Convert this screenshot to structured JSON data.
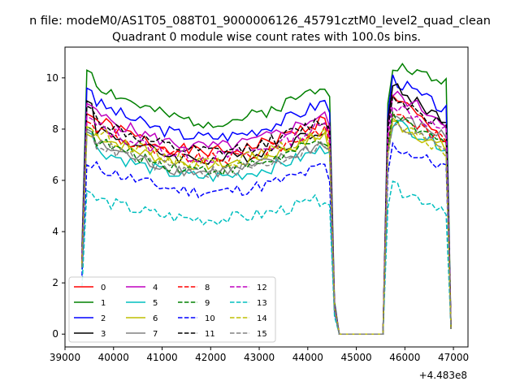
{
  "chart_data": {
    "type": "line",
    "suptitle": "n file: modeM0/AS1T05_088T01_9000006126_45791cztM0_level2_quad_clean",
    "title": "Quadrant 0 module wise count rates with 100.0s bins.",
    "xlabel": "",
    "ylabel": "",
    "x_offset_label": "+4.483e8",
    "xlim": [
      39000,
      47300
    ],
    "ylim": [
      -0.5,
      11.2
    ],
    "xticks": [
      "39000",
      "40000",
      "41000",
      "42000",
      "43000",
      "44000",
      "45000",
      "46000",
      "47000"
    ],
    "yticks": [
      "0",
      "2",
      "4",
      "6",
      "8",
      "10"
    ],
    "grid": false,
    "legend": "lower-left, 4 columns",
    "x_pattern": {
      "segment1": [
        39350,
        44550,
        100
      ],
      "gap": [
        44550,
        45550,
        100
      ],
      "segment2": [
        45550,
        46950,
        100
      ]
    },
    "series": [
      {
        "name": "0",
        "color": "#ff0000",
        "dash": "solid",
        "level": 7.3,
        "peak1": 8.6,
        "peak2": 9.6,
        "tail": 7.4
      },
      {
        "name": "1",
        "color": "#008000",
        "dash": "solid",
        "level": 8.5,
        "peak1": 10.3,
        "peak2": 10.6,
        "tail": 9.8
      },
      {
        "name": "2",
        "color": "#0000ff",
        "dash": "solid",
        "level": 7.9,
        "peak1": 9.6,
        "peak2": 10.1,
        "tail": 8.7
      },
      {
        "name": "3",
        "color": "#000000",
        "dash": "solid",
        "level": 7.0,
        "peak1": 9.1,
        "peak2": 9.8,
        "tail": 8.3
      },
      {
        "name": "4",
        "color": "#bf00bf",
        "dash": "solid",
        "level": 7.5,
        "peak1": 9.0,
        "peak2": 9.5,
        "tail": 8.3
      },
      {
        "name": "5",
        "color": "#00bfbf",
        "dash": "solid",
        "level": 6.3,
        "peak1": 7.9,
        "peak2": 8.4,
        "tail": 7.3
      },
      {
        "name": "6",
        "color": "#bfbf00",
        "dash": "solid",
        "level": 6.8,
        "peak1": 7.8,
        "peak2": 8.4,
        "tail": 7.2
      },
      {
        "name": "7",
        "color": "#808080",
        "dash": "solid",
        "level": 6.5,
        "peak1": 8.0,
        "peak2": 8.6,
        "tail": 7.7
      },
      {
        "name": "8",
        "color": "#ff0000",
        "dash": "dashed",
        "level": 7.0,
        "peak1": 8.3,
        "peak2": 8.8,
        "tail": 7.5
      },
      {
        "name": "9",
        "color": "#008000",
        "dash": "dashed",
        "level": 6.6,
        "peak1": 8.1,
        "peak2": 8.5,
        "tail": 7.4
      },
      {
        "name": "10",
        "color": "#0000ff",
        "dash": "dashed",
        "level": 5.7,
        "peak1": 6.6,
        "peak2": 7.4,
        "tail": 6.5
      },
      {
        "name": "11",
        "color": "#000000",
        "dash": "dashed",
        "level": 7.3,
        "peak1": 8.9,
        "peak2": 9.4,
        "tail": 8.1
      },
      {
        "name": "12",
        "color": "#bf00bf",
        "dash": "dashed",
        "level": 7.1,
        "peak1": 8.5,
        "peak2": 9.1,
        "tail": 7.9
      },
      {
        "name": "13",
        "color": "#00bfbf",
        "dash": "dashed",
        "level": 4.6,
        "peak1": 5.6,
        "peak2": 5.8,
        "tail": 4.9
      },
      {
        "name": "14",
        "color": "#bfbf00",
        "dash": "dashed",
        "level": 6.9,
        "peak1": 8.1,
        "peak2": 8.3,
        "tail": 7.1
      },
      {
        "name": "15",
        "color": "#808080",
        "dash": "dashed",
        "level": 6.5,
        "peak1": 7.9,
        "peak2": 8.2,
        "tail": 7.3
      }
    ]
  }
}
